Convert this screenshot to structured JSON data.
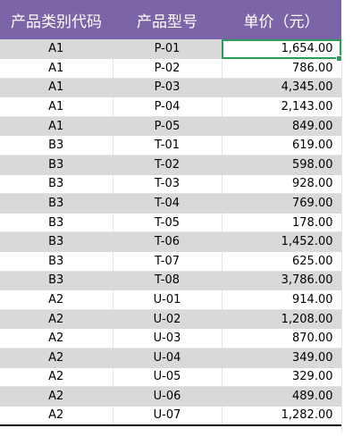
{
  "table": {
    "headers": [
      "产品类别代码",
      "产品型号",
      "单价（元）"
    ],
    "rows": [
      {
        "code": "A1",
        "model": "P-01",
        "price": "1,654.00"
      },
      {
        "code": "A1",
        "model": "P-02",
        "price": "786.00"
      },
      {
        "code": "A1",
        "model": "P-03",
        "price": "4,345.00"
      },
      {
        "code": "A1",
        "model": "P-04",
        "price": "2,143.00"
      },
      {
        "code": "A1",
        "model": "P-05",
        "price": "849.00"
      },
      {
        "code": "B3",
        "model": "T-01",
        "price": "619.00"
      },
      {
        "code": "B3",
        "model": "T-02",
        "price": "598.00"
      },
      {
        "code": "B3",
        "model": "T-03",
        "price": "928.00"
      },
      {
        "code": "B3",
        "model": "T-04",
        "price": "769.00"
      },
      {
        "code": "B3",
        "model": "T-05",
        "price": "178.00"
      },
      {
        "code": "B3",
        "model": "T-06",
        "price": "1,452.00"
      },
      {
        "code": "B3",
        "model": "T-07",
        "price": "625.00"
      },
      {
        "code": "B3",
        "model": "T-08",
        "price": "3,786.00"
      },
      {
        "code": "A2",
        "model": "U-01",
        "price": "914.00"
      },
      {
        "code": "A2",
        "model": "U-02",
        "price": "1,208.00"
      },
      {
        "code": "A2",
        "model": "U-03",
        "price": "870.00"
      },
      {
        "code": "A2",
        "model": "U-04",
        "price": "349.00"
      },
      {
        "code": "A2",
        "model": "U-05",
        "price": "329.00"
      },
      {
        "code": "A2",
        "model": "U-06",
        "price": "489.00"
      },
      {
        "code": "A2",
        "model": "U-07",
        "price": "1,282.00"
      }
    ]
  },
  "colors": {
    "header_bg": "#7b64a8",
    "header_text": "#ffffff",
    "band_shade": "#d9d9d9",
    "selection": "#2b9c5a"
  }
}
